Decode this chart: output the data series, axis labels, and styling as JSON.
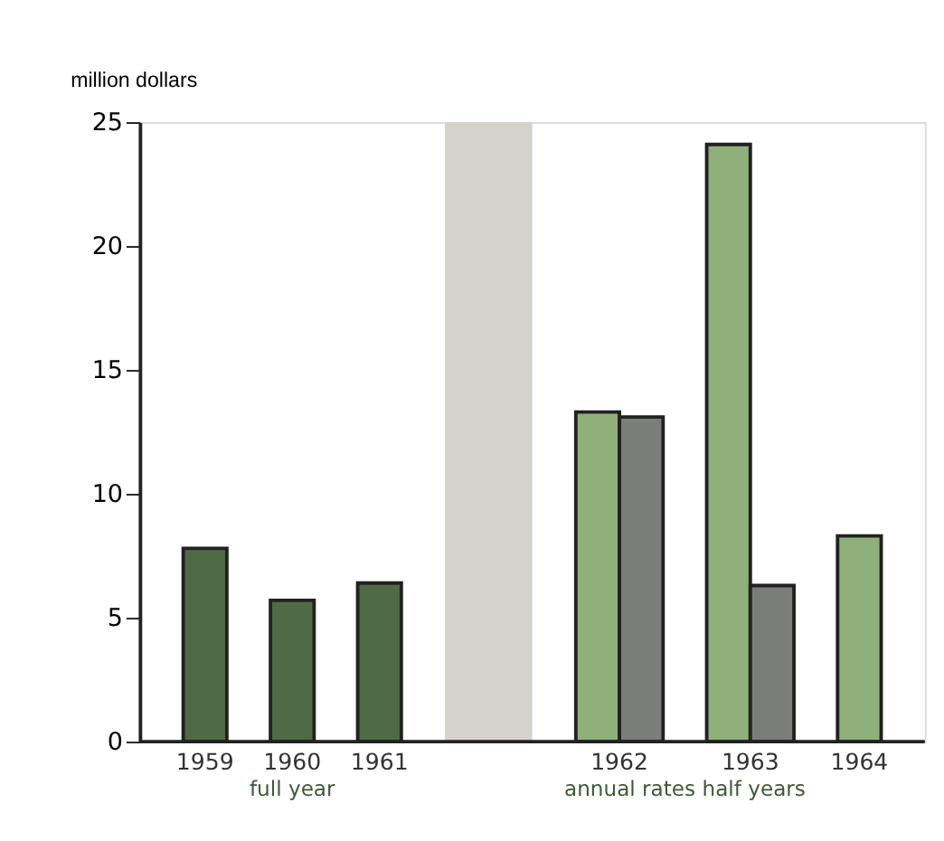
{
  "chart_data": {
    "type": "bar",
    "ylabel": "million dollars",
    "categories": [
      "1959",
      "1960",
      "1961",
      null,
      "1962",
      "1963",
      "1964"
    ],
    "series": [
      {
        "color": "#4f6b45",
        "values": [
          7.8,
          5.7,
          6.4,
          null,
          null,
          null,
          null
        ]
      },
      {
        "color": "#d4d2cb",
        "values": [
          null,
          null,
          null,
          25,
          null,
          null,
          null
        ]
      },
      {
        "color": "#8fb07a",
        "values": [
          null,
          null,
          null,
          null,
          13.3,
          24.1,
          8.3
        ]
      },
      {
        "color": "#7b7d7b",
        "values": [
          null,
          null,
          null,
          null,
          13.1,
          6.3,
          null
        ]
      }
    ],
    "ylim": [
      0,
      25
    ],
    "yticks": [
      0,
      5,
      10,
      15,
      20,
      25
    ],
    "annotations": [
      "full year",
      "annual rates half years"
    ],
    "grid": false,
    "legend": false
  }
}
